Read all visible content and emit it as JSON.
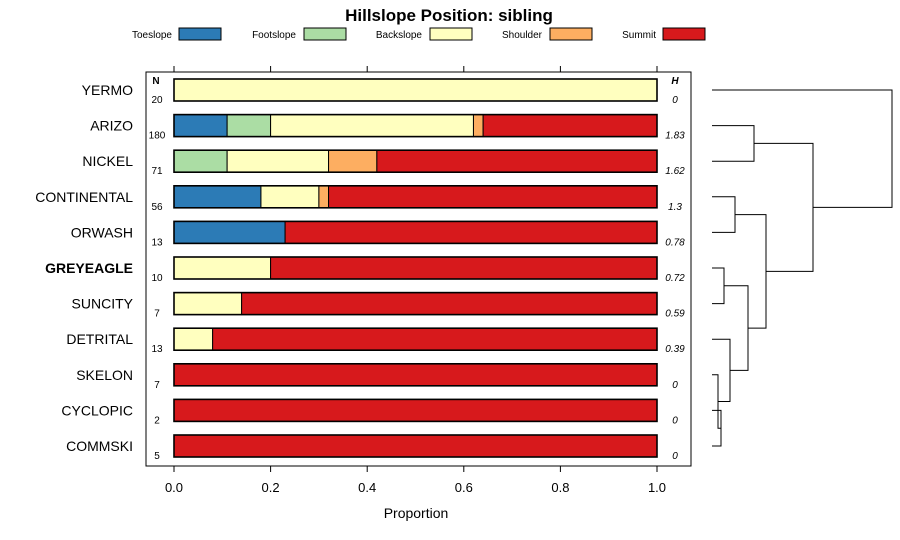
{
  "chart_data": {
    "type": "bar",
    "stacked": true,
    "orientation": "horizontal",
    "title": "Hillslope Position: sibling",
    "xlabel": "Proportion",
    "xlim": [
      0,
      1
    ],
    "x_ticks": [
      "0.0",
      "0.2",
      "0.4",
      "0.6",
      "0.8",
      "1.0"
    ],
    "n_header": "N",
    "h_header": "H",
    "legend": {
      "placement": "top",
      "entries": [
        {
          "name": "Toeslope",
          "color": "#2C7BB6"
        },
        {
          "name": "Footslope",
          "color": "#ABDDA4"
        },
        {
          "name": "Backslope",
          "color": "#FFFFBF"
        },
        {
          "name": "Shoulder",
          "color": "#FDAE61"
        },
        {
          "name": "Summit",
          "color": "#D7191C"
        }
      ]
    },
    "categories": [
      "YERMO",
      "ARIZO",
      "NICKEL",
      "CONTINENTAL",
      "ORWASH",
      "GREYEAGLE",
      "SUNCITY",
      "DETRITAL",
      "SKELON",
      "CYCLOPIC",
      "COMMSKI"
    ],
    "highlighted": "GREYEAGLE",
    "n": [
      "20",
      "180",
      "71",
      "56",
      "13",
      "10",
      "7",
      "13",
      "7",
      "2",
      "5"
    ],
    "h": [
      "0",
      "1.83",
      "1.62",
      "1.3",
      "0.78",
      "0.72",
      "0.59",
      "0.39",
      "0",
      "0",
      "0"
    ],
    "series": [
      {
        "name": "Toeslope",
        "values": [
          0,
          0.11,
          0,
          0.18,
          0.23,
          0,
          0,
          0,
          0,
          0,
          0
        ]
      },
      {
        "name": "Footslope",
        "values": [
          0,
          0.09,
          0.11,
          0,
          0,
          0,
          0,
          0,
          0,
          0,
          0
        ]
      },
      {
        "name": "Backslope",
        "values": [
          1,
          0.42,
          0.21,
          0.12,
          0,
          0.2,
          0.14,
          0.08,
          0,
          0,
          0
        ]
      },
      {
        "name": "Shoulder",
        "values": [
          0,
          0.02,
          0.1,
          0.02,
          0,
          0,
          0,
          0,
          0,
          0,
          0
        ]
      },
      {
        "name": "Summit",
        "values": [
          0,
          0.36,
          0.58,
          0.68,
          0.77,
          0.8,
          0.86,
          0.92,
          1,
          1,
          1
        ]
      }
    ],
    "dendrogram": {
      "merges": [
        [
          "ARIZO",
          "NICKEL"
        ],
        [
          "CONTINENTAL",
          "ORWASH"
        ],
        [
          "GREYEAGLE",
          "SUNCITY"
        ],
        [
          "CYCLOPIC",
          "COMMSKI"
        ],
        [
          "SKELON",
          "CYCLOPIC+COMMSKI"
        ],
        [
          "DETRITAL",
          "SKELON+CYCLOPIC+COMMSKI"
        ],
        [
          "GREYEAGLE+SUNCITY",
          "DETRITAL+SKELON+CYCLOPIC+COMMSKI"
        ],
        [
          "CONTINENTAL+ORWASH",
          "GREYEAGLE+SUNCITY+DETRITAL+SKELON+CYCLOPIC+COMMSKI"
        ],
        [
          "ARIZO+NICKEL",
          "CONTINENTAL+ORWASH+GREYEAGLE+SUNCITY+DETRITAL+SKELON+CYCLOPIC+COMMSKI"
        ],
        [
          "YERMO",
          "ARIZO+NICKEL+CONTINENTAL+ORWASH+GREYEAGLE+SUNCITY+DETRITAL+SKELON+CYCLOPIC+COMMSKI"
        ]
      ]
    }
  }
}
